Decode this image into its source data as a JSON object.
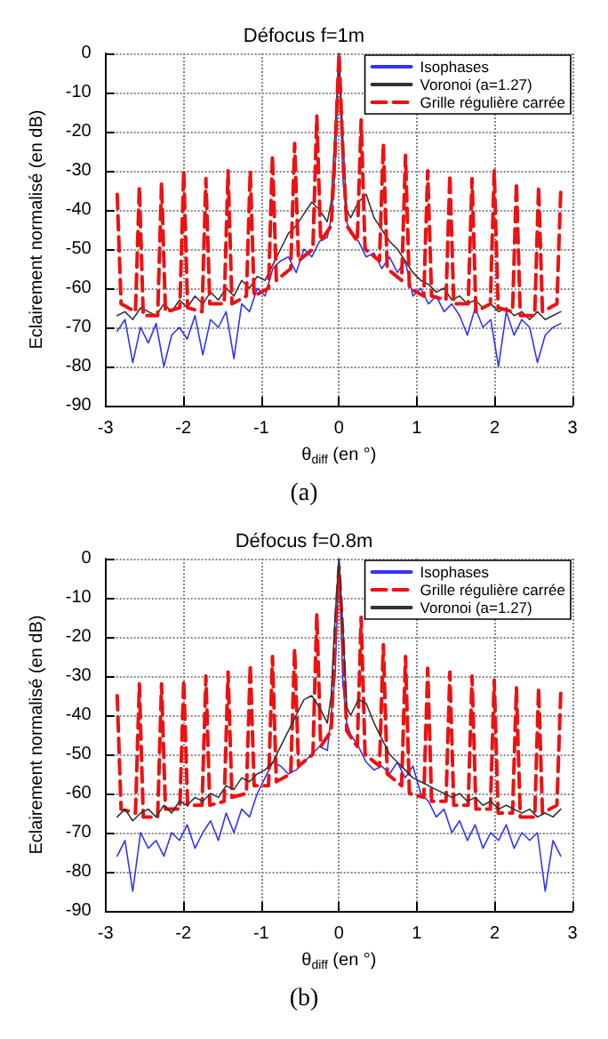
{
  "chart_data": [
    {
      "type": "line",
      "title": "Défocus f=1m",
      "xlabel": "θ$_{diff}$ (en °)",
      "ylabel": "Eclairement normalisé (en dB)",
      "annotations": [
        "(a)"
      ],
      "xlim": [
        -3,
        3
      ],
      "ylim": [
        -90,
        0
      ],
      "xticks": [
        -3,
        -2,
        -1,
        0,
        1,
        2,
        3
      ],
      "yticks": [
        -90,
        -80,
        -70,
        -60,
        -50,
        -40,
        -30,
        -20,
        -10,
        0
      ],
      "grid": true,
      "legend": "top right",
      "x": [
        -2.85,
        -2.75,
        -2.65,
        -2.55,
        -2.45,
        -2.35,
        -2.25,
        -2.15,
        -2.05,
        -1.95,
        -1.85,
        -1.75,
        -1.65,
        -1.55,
        -1.45,
        -1.35,
        -1.25,
        -1.15,
        -1.05,
        -0.95,
        -0.85,
        -0.75,
        -0.65,
        -0.55,
        -0.45,
        -0.35,
        -0.25,
        -0.15,
        -0.1,
        -0.05,
        0,
        0.05,
        0.1,
        0.15,
        0.25,
        0.35,
        0.45,
        0.55,
        0.65,
        0.75,
        0.85,
        0.95,
        1.05,
        1.15,
        1.25,
        1.35,
        1.45,
        1.55,
        1.65,
        1.75,
        1.85,
        1.95,
        2.05,
        2.15,
        2.25,
        2.35,
        2.45,
        2.55,
        2.65,
        2.75,
        2.85
      ],
      "series": [
        {
          "name": "Isophases",
          "color": "#3333ff",
          "line_style": "solid",
          "values": [
            -71,
            -68,
            -79,
            -70,
            -74,
            -69,
            -80,
            -72,
            -70,
            -73,
            -67,
            -77,
            -68,
            -70,
            -66,
            -78,
            -64,
            -66,
            -60,
            -62,
            -55,
            -53,
            -52,
            -56,
            -50,
            -52,
            -48,
            -47,
            -42,
            -30,
            0,
            -32,
            -43,
            -46,
            -48,
            -52,
            -51,
            -55,
            -52,
            -56,
            -53,
            -62,
            -60,
            -64,
            -62,
            -66,
            -64,
            -67,
            -72,
            -65,
            -70,
            -68,
            -80,
            -66,
            -72,
            -68,
            -70,
            -79,
            -72,
            -70,
            -69
          ]
        },
        {
          "name": "Voronoi (a=1.27)",
          "color": "#333333",
          "line_style": "solid",
          "values": [
            -67,
            -66,
            -68,
            -65,
            -66,
            -67,
            -64,
            -66,
            -63,
            -65,
            -62,
            -64,
            -61,
            -63,
            -60,
            -62,
            -58,
            -60,
            -57,
            -58,
            -54,
            -50,
            -46,
            -44,
            -41,
            -38,
            -40,
            -43,
            -38,
            -20,
            0,
            -22,
            -40,
            -42,
            -38,
            -36,
            -42,
            -45,
            -48,
            -50,
            -53,
            -56,
            -58,
            -59,
            -61,
            -60,
            -63,
            -62,
            -64,
            -63,
            -65,
            -64,
            -66,
            -65,
            -67,
            -66,
            -68,
            -66,
            -68,
            -67,
            -66
          ]
        },
        {
          "name": "Grille régulière carrée",
          "color": "#ee1111",
          "line_style": "dashed",
          "x": [
            -2.85,
            -2.8,
            -2.615,
            -2.565,
            -2.515,
            -2.33,
            -2.28,
            -2.23,
            -2.045,
            -1.995,
            -1.945,
            -1.76,
            -1.71,
            -1.66,
            -1.475,
            -1.425,
            -1.375,
            -1.19,
            -1.14,
            -1.09,
            -0.905,
            -0.855,
            -0.805,
            -0.62,
            -0.57,
            -0.52,
            -0.335,
            -0.285,
            -0.235,
            -0.1,
            -0.05,
            0,
            0.05,
            0.1,
            0.235,
            0.285,
            0.335,
            0.52,
            0.57,
            0.62,
            0.805,
            0.855,
            0.905,
            1.09,
            1.14,
            1.19,
            1.375,
            1.425,
            1.475,
            1.66,
            1.71,
            1.76,
            1.945,
            1.995,
            2.045,
            2.23,
            2.28,
            2.33,
            2.515,
            2.565,
            2.615,
            2.8,
            2.85
          ],
          "values": [
            -36,
            -64,
            -66,
            -34,
            -67,
            -67,
            -33,
            -66,
            -65,
            -30,
            -65,
            -66,
            -32,
            -64,
            -64,
            -30,
            -64,
            -62,
            -30,
            -62,
            -60,
            -26,
            -58,
            -55,
            -23,
            -53,
            -50,
            -16,
            -48,
            -44,
            -25,
            0,
            -25,
            -44,
            -48,
            -17,
            -50,
            -53,
            -23,
            -55,
            -58,
            -26,
            -60,
            -62,
            -30,
            -62,
            -63,
            -31,
            -64,
            -64,
            -32,
            -66,
            -64,
            -30,
            -65,
            -66,
            -33,
            -67,
            -67,
            -34,
            -66,
            -64,
            -35
          ]
        }
      ]
    },
    {
      "type": "line",
      "title": "Défocus f=0.8m",
      "xlabel": "θ$_{diff}$ (en °)",
      "ylabel": "Eclairement normalisé (en dB)",
      "annotations": [
        "(b)"
      ],
      "xlim": [
        -3,
        3
      ],
      "ylim": [
        -90,
        0
      ],
      "xticks": [
        -3,
        -2,
        -1,
        0,
        1,
        2,
        3
      ],
      "yticks": [
        -90,
        -80,
        -70,
        -60,
        -50,
        -40,
        -30,
        -20,
        -10,
        0
      ],
      "grid": true,
      "legend": "top right",
      "x": [
        -2.85,
        -2.75,
        -2.65,
        -2.55,
        -2.45,
        -2.35,
        -2.25,
        -2.15,
        -2.05,
        -1.95,
        -1.85,
        -1.75,
        -1.65,
        -1.55,
        -1.45,
        -1.35,
        -1.25,
        -1.15,
        -1.05,
        -0.95,
        -0.85,
        -0.75,
        -0.65,
        -0.55,
        -0.45,
        -0.35,
        -0.25,
        -0.15,
        -0.1,
        -0.05,
        0,
        0.05,
        0.1,
        0.15,
        0.25,
        0.35,
        0.45,
        0.55,
        0.65,
        0.75,
        0.85,
        0.95,
        1.05,
        1.15,
        1.25,
        1.35,
        1.45,
        1.55,
        1.65,
        1.75,
        1.85,
        1.95,
        2.05,
        2.15,
        2.25,
        2.35,
        2.45,
        2.55,
        2.65,
        2.75,
        2.85
      ],
      "series": [
        {
          "name": "Isophases",
          "color": "#3333ff",
          "line_style": "solid",
          "values": [
            -76,
            -72,
            -85,
            -70,
            -74,
            -72,
            -76,
            -70,
            -72,
            -68,
            -74,
            -70,
            -67,
            -72,
            -65,
            -70,
            -64,
            -66,
            -60,
            -56,
            -52,
            -53,
            -55,
            -54,
            -52,
            -50,
            -48,
            -49,
            -40,
            -30,
            0,
            -32,
            -42,
            -45,
            -48,
            -52,
            -54,
            -53,
            -55,
            -52,
            -56,
            -53,
            -60,
            -62,
            -66,
            -64,
            -70,
            -67,
            -72,
            -68,
            -74,
            -70,
            -72,
            -68,
            -74,
            -70,
            -72,
            -70,
            -85,
            -72,
            -76
          ]
        },
        {
          "name": "Grille régulière carrée",
          "color": "#ee1111",
          "line_style": "dashed",
          "x": [
            -2.85,
            -2.8,
            -2.615,
            -2.565,
            -2.515,
            -2.33,
            -2.28,
            -2.23,
            -2.045,
            -1.995,
            -1.945,
            -1.76,
            -1.71,
            -1.66,
            -1.475,
            -1.425,
            -1.375,
            -1.19,
            -1.14,
            -1.09,
            -0.905,
            -0.855,
            -0.805,
            -0.62,
            -0.57,
            -0.52,
            -0.335,
            -0.285,
            -0.235,
            -0.1,
            -0.05,
            0,
            0.05,
            0.1,
            0.235,
            0.285,
            0.335,
            0.52,
            0.57,
            0.62,
            0.805,
            0.855,
            0.905,
            1.09,
            1.14,
            1.19,
            1.375,
            1.425,
            1.475,
            1.66,
            1.71,
            1.76,
            1.945,
            1.995,
            2.045,
            2.23,
            2.28,
            2.33,
            2.515,
            2.565,
            2.615,
            2.8,
            2.85
          ],
          "values": [
            -35,
            -64,
            -65,
            -32,
            -66,
            -66,
            -32,
            -64,
            -64,
            -31,
            -63,
            -63,
            -30,
            -63,
            -62,
            -29,
            -61,
            -60,
            -27,
            -58,
            -58,
            -25,
            -57,
            -55,
            -23,
            -53,
            -50,
            -14,
            -48,
            -44,
            -20,
            -2,
            -20,
            -44,
            -48,
            -15,
            -50,
            -53,
            -22,
            -55,
            -58,
            -25,
            -60,
            -61,
            -28,
            -62,
            -62,
            -29,
            -63,
            -63,
            -30,
            -64,
            -64,
            -31,
            -65,
            -65,
            -33,
            -66,
            -66,
            -33,
            -65,
            -63,
            -34
          ]
        },
        {
          "name": "Voronoi (a=1.27)",
          "color": "#333333",
          "line_style": "solid",
          "values": [
            -66,
            -64,
            -67,
            -65,
            -64,
            -66,
            -63,
            -65,
            -62,
            -63,
            -61,
            -62,
            -60,
            -61,
            -58,
            -59,
            -56,
            -57,
            -55,
            -54,
            -52,
            -48,
            -44,
            -40,
            -36,
            -35,
            -38,
            -42,
            -35,
            -15,
            0,
            -18,
            -38,
            -40,
            -36,
            -37,
            -42,
            -46,
            -50,
            -52,
            -54,
            -56,
            -57,
            -58,
            -59,
            -60,
            -61,
            -60,
            -62,
            -61,
            -63,
            -62,
            -64,
            -63,
            -64,
            -65,
            -64,
            -66,
            -65,
            -66,
            -64
          ]
        }
      ]
    }
  ]
}
